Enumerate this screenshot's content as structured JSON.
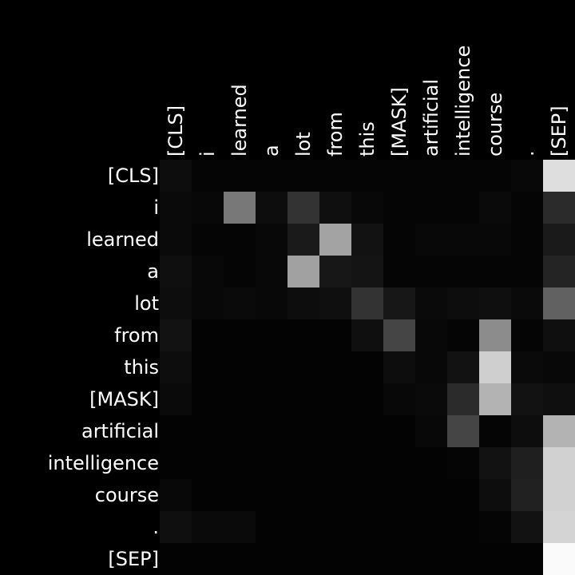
{
  "chart_data": {
    "type": "heatmap",
    "title": "",
    "xlabel": "",
    "ylabel": "",
    "colormap": "grayscale",
    "background": "#000000",
    "text_color": "#ffffff",
    "vlim": [
      0,
      1
    ],
    "x_tokens": [
      "[CLS]",
      "i",
      "learned",
      "a",
      "lot",
      "from",
      "this",
      "[MASK]",
      "artificial",
      "intelligence",
      "course",
      ".",
      "[SEP]"
    ],
    "y_tokens": [
      "[CLS]",
      "i",
      "learned",
      "a",
      "lot",
      "from",
      "this",
      "[MASK]",
      "artificial",
      "intelligence",
      "course",
      ".",
      "[SEP]"
    ],
    "values": [
      [
        0.05,
        0.02,
        0.02,
        0.02,
        0.02,
        0.02,
        0.02,
        0.02,
        0.02,
        0.02,
        0.02,
        0.03,
        0.87
      ],
      [
        0.04,
        0.03,
        0.47,
        0.05,
        0.2,
        0.06,
        0.03,
        0.02,
        0.02,
        0.02,
        0.04,
        0.02,
        0.17
      ],
      [
        0.04,
        0.02,
        0.02,
        0.03,
        0.1,
        0.64,
        0.07,
        0.02,
        0.03,
        0.03,
        0.03,
        0.02,
        0.1
      ],
      [
        0.06,
        0.03,
        0.02,
        0.03,
        0.63,
        0.09,
        0.08,
        0.02,
        0.02,
        0.02,
        0.02,
        0.02,
        0.14
      ],
      [
        0.05,
        0.03,
        0.04,
        0.03,
        0.05,
        0.06,
        0.2,
        0.09,
        0.04,
        0.05,
        0.06,
        0.04,
        0.38
      ],
      [
        0.07,
        0.01,
        0.01,
        0.01,
        0.01,
        0.01,
        0.06,
        0.27,
        0.03,
        0.02,
        0.55,
        0.02,
        0.06
      ],
      [
        0.05,
        0.01,
        0.01,
        0.01,
        0.01,
        0.01,
        0.01,
        0.05,
        0.03,
        0.07,
        0.81,
        0.04,
        0.03
      ],
      [
        0.04,
        0.01,
        0.01,
        0.01,
        0.01,
        0.01,
        0.01,
        0.03,
        0.04,
        0.17,
        0.7,
        0.07,
        0.06
      ],
      [
        0.01,
        0.01,
        0.01,
        0.01,
        0.01,
        0.01,
        0.01,
        0.01,
        0.03,
        0.27,
        0.02,
        0.05,
        0.7
      ],
      [
        0.01,
        0.01,
        0.01,
        0.01,
        0.01,
        0.01,
        0.01,
        0.01,
        0.01,
        0.02,
        0.07,
        0.12,
        0.82
      ],
      [
        0.03,
        0.01,
        0.01,
        0.01,
        0.01,
        0.01,
        0.01,
        0.01,
        0.01,
        0.01,
        0.05,
        0.13,
        0.82
      ],
      [
        0.06,
        0.04,
        0.04,
        0.01,
        0.01,
        0.01,
        0.01,
        0.01,
        0.01,
        0.01,
        0.02,
        0.07,
        0.83
      ],
      [
        0.01,
        0.01,
        0.01,
        0.01,
        0.01,
        0.01,
        0.01,
        0.01,
        0.01,
        0.01,
        0.01,
        0.01,
        0.98
      ]
    ]
  }
}
